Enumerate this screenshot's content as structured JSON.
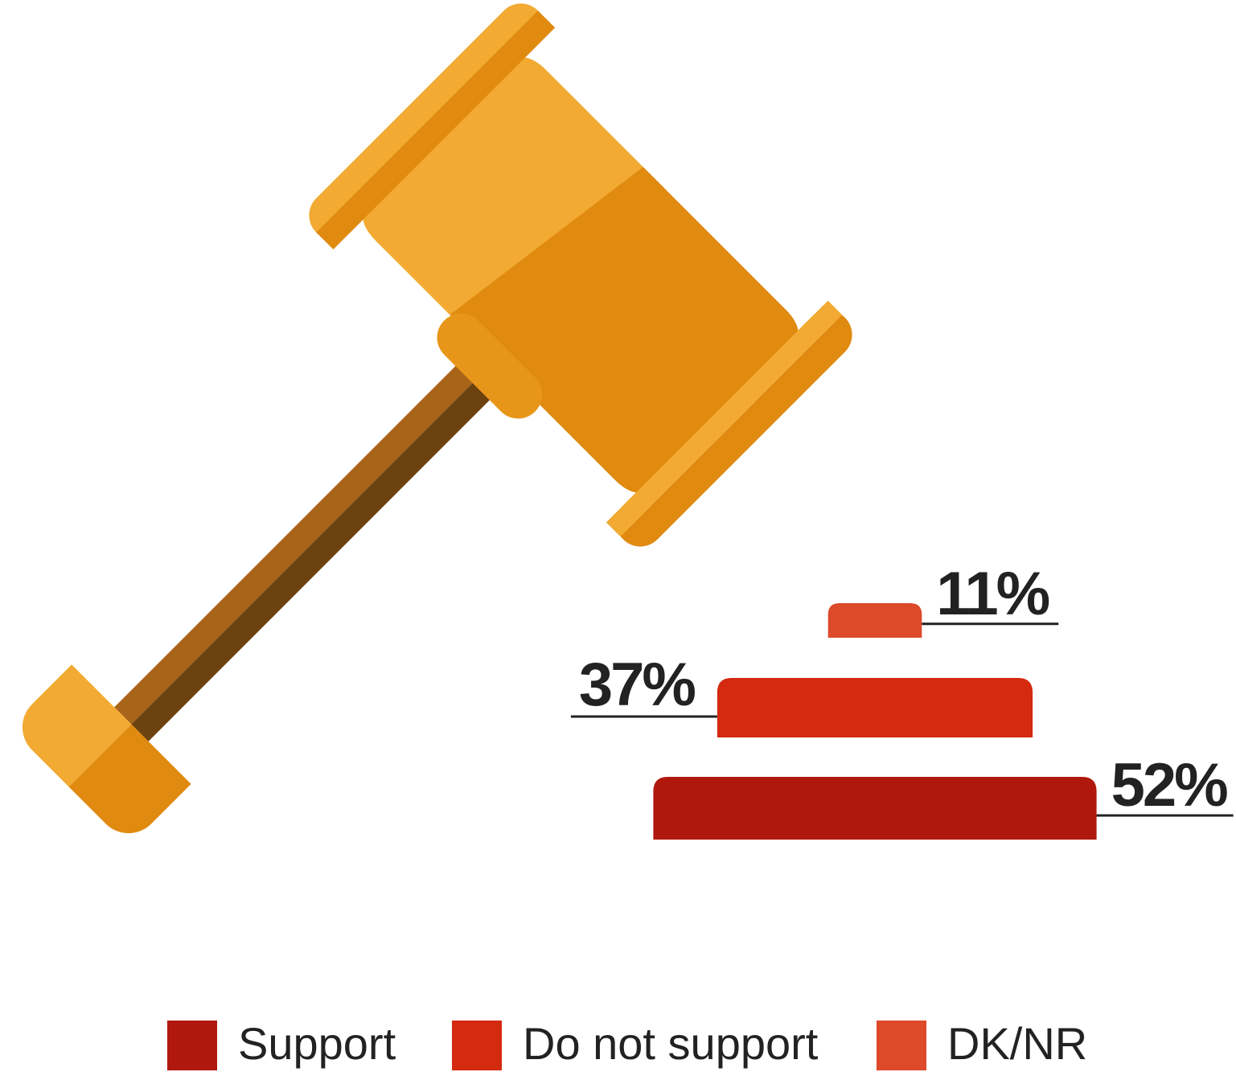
{
  "chart_data": {
    "type": "bar",
    "categories": [
      "Support",
      "Do not support",
      "DK/NR"
    ],
    "values": [
      52,
      37,
      11
    ],
    "value_labels": [
      "52%",
      "37%",
      "11%"
    ],
    "colors": [
      "#b0180e",
      "#d32a10",
      "#dc4a2a"
    ]
  }
}
